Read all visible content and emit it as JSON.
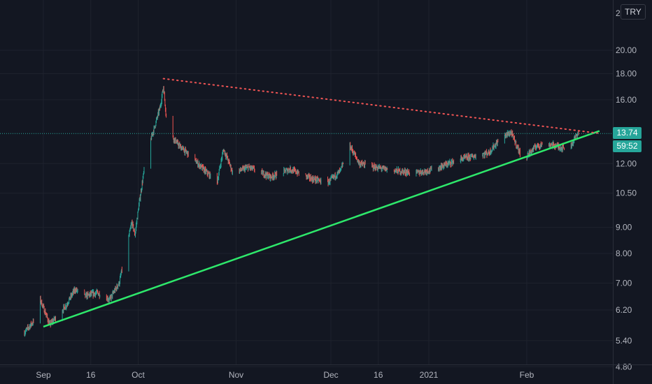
{
  "currency": "TRY",
  "last_price_label": "13.74",
  "countdown_label": "59:52",
  "colors": {
    "background": "#131722",
    "up": "#26a69a",
    "down": "#ef5350",
    "support": "#2ee86b",
    "resistance": "#f05454",
    "grid": "#1e222d",
    "axis_text": "#b2b5be"
  },
  "chart_data": {
    "type": "candlestick",
    "y_scale": "log",
    "ylim": [
      4.4,
      24
    ],
    "y_ticks": [
      "4.80",
      "5.40",
      "6.20",
      "7.00",
      "8.00",
      "9.00",
      "10.50",
      "12.00",
      "16.00",
      "18.00",
      "20.00"
    ],
    "y_top_partial_label": "2",
    "x_ticks": [
      "Sep",
      "16",
      "Oct",
      "Nov",
      "Dec",
      "16",
      "2021",
      "Feb"
    ],
    "last_price": 13.74,
    "series": [
      {
        "kind": "trendline",
        "role": "support",
        "style": "solid",
        "points": [
          {
            "x": "Sep 1",
            "y": 5.75
          },
          {
            "x": "Feb 24",
            "y": 13.9
          }
        ]
      },
      {
        "kind": "trendline",
        "role": "resistance",
        "style": "dotted",
        "points": [
          {
            "x": "Oct 9",
            "y": 17.6
          },
          {
            "x": "Feb 24",
            "y": 13.75
          }
        ]
      },
      {
        "kind": "price",
        "anchors": [
          {
            "x": "Aug 26",
            "y": 5.6
          },
          {
            "x": "Aug 30",
            "y": 6.0
          },
          {
            "x": "Aug 31",
            "y": 6.5
          },
          {
            "x": "Sep 3",
            "y": 5.8
          },
          {
            "x": "Sep 8",
            "y": 6.3
          },
          {
            "x": "Sep 11",
            "y": 6.8
          },
          {
            "x": "Sep 14",
            "y": 6.6
          },
          {
            "x": "Sep 18",
            "y": 6.7
          },
          {
            "x": "Sep 22",
            "y": 6.5
          },
          {
            "x": "Sep 25",
            "y": 7.0
          },
          {
            "x": "Sep 27",
            "y": 8.0
          },
          {
            "x": "Sep 29",
            "y": 9.2
          },
          {
            "x": "Sep 30",
            "y": 8.7
          },
          {
            "x": "Oct 2",
            "y": 10.7
          },
          {
            "x": "Oct 4",
            "y": 12.8
          },
          {
            "x": "Oct 6",
            "y": 14.0
          },
          {
            "x": "Oct 8",
            "y": 15.5
          },
          {
            "x": "Oct 9",
            "y": 17.0
          },
          {
            "x": "Oct 10",
            "y": 14.5
          },
          {
            "x": "Oct 12",
            "y": 13.5
          },
          {
            "x": "Oct 14",
            "y": 13.0
          },
          {
            "x": "Oct 17",
            "y": 12.5
          },
          {
            "x": "Oct 21",
            "y": 11.8
          },
          {
            "x": "Oct 26",
            "y": 11.0
          },
          {
            "x": "Oct 28",
            "y": 12.8
          },
          {
            "x": "Oct 31",
            "y": 11.5
          },
          {
            "x": "Nov 5",
            "y": 11.8
          },
          {
            "x": "Nov 12",
            "y": 11.3
          },
          {
            "x": "Nov 18",
            "y": 11.7
          },
          {
            "x": "Nov 25",
            "y": 11.2
          },
          {
            "x": "Nov 30",
            "y": 11.0
          },
          {
            "x": "Dec 4",
            "y": 11.6
          },
          {
            "x": "Dec 7",
            "y": 13.0
          },
          {
            "x": "Dec 10",
            "y": 12.0
          },
          {
            "x": "Dec 15",
            "y": 11.8
          },
          {
            "x": "Dec 22",
            "y": 11.6
          },
          {
            "x": "Dec 28",
            "y": 11.5
          },
          {
            "x": "Jan 3",
            "y": 11.7
          },
          {
            "x": "Jan 10",
            "y": 12.2
          },
          {
            "x": "Jan 15",
            "y": 12.4
          },
          {
            "x": "Jan 20",
            "y": 12.6
          },
          {
            "x": "Jan 24",
            "y": 13.5
          },
          {
            "x": "Jan 27",
            "y": 13.8
          },
          {
            "x": "Jan 30",
            "y": 12.5
          },
          {
            "x": "Feb 1",
            "y": 12.4
          },
          {
            "x": "Feb 4",
            "y": 13.0
          },
          {
            "x": "Feb 8",
            "y": 13.1
          },
          {
            "x": "Feb 12",
            "y": 12.9
          },
          {
            "x": "Feb 15",
            "y": 13.0
          },
          {
            "x": "Feb 17",
            "y": 13.74
          }
        ]
      }
    ]
  }
}
